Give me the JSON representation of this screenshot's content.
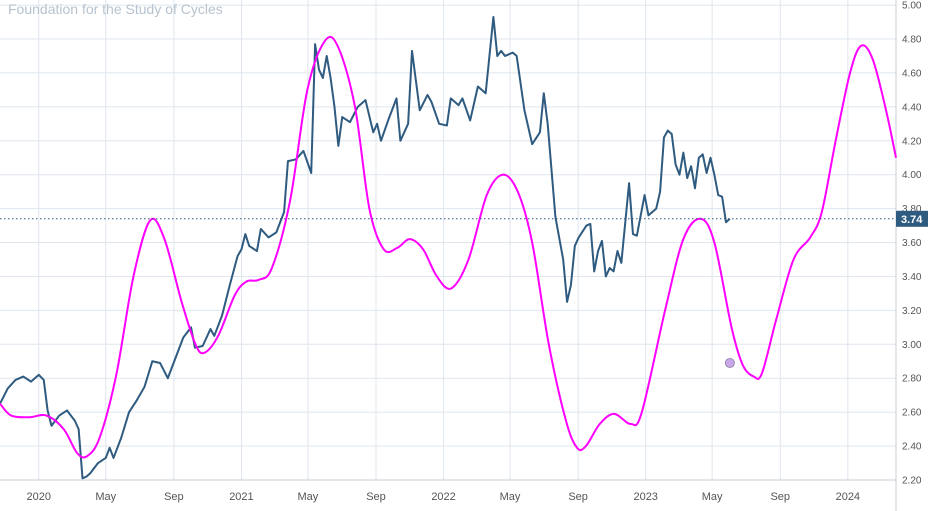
{
  "watermark": "Foundation for the Study of Cycles",
  "chart_data": {
    "type": "line",
    "title": "",
    "xlabel": "",
    "ylabel": "",
    "x_ticks": [
      {
        "label": "2020",
        "date": "2020-01-01"
      },
      {
        "label": "May",
        "date": "2020-05-01"
      },
      {
        "label": "Sep",
        "date": "2020-09-01"
      },
      {
        "label": "2021",
        "date": "2021-01-01"
      },
      {
        "label": "May",
        "date": "2021-05-01"
      },
      {
        "label": "Sep",
        "date": "2021-09-01"
      },
      {
        "label": "2022",
        "date": "2022-01-01"
      },
      {
        "label": "May",
        "date": "2022-05-01"
      },
      {
        "label": "Sep",
        "date": "2022-09-01"
      },
      {
        "label": "2023",
        "date": "2023-01-01"
      },
      {
        "label": "May",
        "date": "2023-05-01"
      },
      {
        "label": "Sep",
        "date": "2023-09-01"
      },
      {
        "label": "2024",
        "date": "2024-01-01"
      }
    ],
    "xlim": [
      "2019-10-23",
      "2024-03-28"
    ],
    "y_ticks": [
      "2.20",
      "2.40",
      "2.60",
      "2.80",
      "3.00",
      "3.20",
      "3.40",
      "3.60",
      "3.80",
      "4.00",
      "4.20",
      "4.40",
      "4.60",
      "4.80",
      "5.00"
    ],
    "ylim": [
      2.2,
      5.03
    ],
    "grid": true,
    "last_value": 3.74,
    "last_value_label": "3.74",
    "colors": {
      "price": "#2f5b80",
      "cycle": "#ff00ff",
      "marker_fill": "#c9a7e8",
      "grid": "#dfe6ee",
      "badge": "#2f5b80",
      "axis_text": "#555555"
    },
    "series": [
      {
        "style": "price",
        "points": [
          [
            "2019-10-23",
            2.65
          ],
          [
            "2019-11-06",
            2.74
          ],
          [
            "2019-11-20",
            2.79
          ],
          [
            "2019-12-04",
            2.81
          ],
          [
            "2019-12-18",
            2.78
          ],
          [
            "2020-01-01",
            2.82
          ],
          [
            "2020-01-10",
            2.79
          ],
          [
            "2020-01-17",
            2.61
          ],
          [
            "2020-01-24",
            2.52
          ],
          [
            "2020-02-07",
            2.58
          ],
          [
            "2020-02-21",
            2.61
          ],
          [
            "2020-03-06",
            2.55
          ],
          [
            "2020-03-13",
            2.5
          ],
          [
            "2020-03-20",
            2.21
          ],
          [
            "2020-03-27",
            2.22
          ],
          [
            "2020-04-03",
            2.24
          ],
          [
            "2020-04-17",
            2.3
          ],
          [
            "2020-05-01",
            2.33
          ],
          [
            "2020-05-08",
            2.39
          ],
          [
            "2020-05-15",
            2.33
          ],
          [
            "2020-05-29",
            2.45
          ],
          [
            "2020-06-12",
            2.6
          ],
          [
            "2020-06-26",
            2.67
          ],
          [
            "2020-07-10",
            2.75
          ],
          [
            "2020-07-24",
            2.9
          ],
          [
            "2020-08-07",
            2.89
          ],
          [
            "2020-08-21",
            2.8
          ],
          [
            "2020-09-04",
            2.92
          ],
          [
            "2020-09-18",
            3.04
          ],
          [
            "2020-10-02",
            3.1
          ],
          [
            "2020-10-09",
            2.98
          ],
          [
            "2020-10-23",
            2.99
          ],
          [
            "2020-11-06",
            3.09
          ],
          [
            "2020-11-13",
            3.05
          ],
          [
            "2020-11-27",
            3.17
          ],
          [
            "2020-12-11",
            3.35
          ],
          [
            "2020-12-25",
            3.52
          ],
          [
            "2021-01-01",
            3.56
          ],
          [
            "2021-01-08",
            3.65
          ],
          [
            "2021-01-15",
            3.58
          ],
          [
            "2021-01-29",
            3.55
          ],
          [
            "2021-02-05",
            3.68
          ],
          [
            "2021-02-19",
            3.63
          ],
          [
            "2021-03-05",
            3.66
          ],
          [
            "2021-03-19",
            3.78
          ],
          [
            "2021-03-26",
            4.08
          ],
          [
            "2021-04-09",
            4.09
          ],
          [
            "2021-04-23",
            4.14
          ],
          [
            "2021-05-07",
            4.01
          ],
          [
            "2021-05-14",
            4.77
          ],
          [
            "2021-05-21",
            4.62
          ],
          [
            "2021-05-28",
            4.57
          ],
          [
            "2021-06-04",
            4.7
          ],
          [
            "2021-06-11",
            4.57
          ],
          [
            "2021-06-18",
            4.4
          ],
          [
            "2021-06-25",
            4.17
          ],
          [
            "2021-07-02",
            4.34
          ],
          [
            "2021-07-16",
            4.31
          ],
          [
            "2021-07-30",
            4.4
          ],
          [
            "2021-08-13",
            4.44
          ],
          [
            "2021-08-27",
            4.25
          ],
          [
            "2021-09-03",
            4.3
          ],
          [
            "2021-09-10",
            4.2
          ],
          [
            "2021-09-24",
            4.33
          ],
          [
            "2021-10-08",
            4.45
          ],
          [
            "2021-10-15",
            4.2
          ],
          [
            "2021-10-29",
            4.3
          ],
          [
            "2021-11-05",
            4.73
          ],
          [
            "2021-11-19",
            4.38
          ],
          [
            "2021-12-03",
            4.47
          ],
          [
            "2021-12-10",
            4.43
          ],
          [
            "2021-12-24",
            4.3
          ],
          [
            "2022-01-07",
            4.29
          ],
          [
            "2022-01-14",
            4.45
          ],
          [
            "2022-01-28",
            4.41
          ],
          [
            "2022-02-04",
            4.45
          ],
          [
            "2022-02-18",
            4.32
          ],
          [
            "2022-03-04",
            4.52
          ],
          [
            "2022-03-18",
            4.48
          ],
          [
            "2022-04-01",
            4.93
          ],
          [
            "2022-04-08",
            4.7
          ],
          [
            "2022-04-15",
            4.73
          ],
          [
            "2022-04-22",
            4.7
          ],
          [
            "2022-05-06",
            4.72
          ],
          [
            "2022-05-13",
            4.7
          ],
          [
            "2022-05-27",
            4.38
          ],
          [
            "2022-06-10",
            4.18
          ],
          [
            "2022-06-24",
            4.25
          ],
          [
            "2022-07-01",
            4.48
          ],
          [
            "2022-07-08",
            4.3
          ],
          [
            "2022-07-22",
            3.75
          ],
          [
            "2022-08-05",
            3.5
          ],
          [
            "2022-08-12",
            3.25
          ],
          [
            "2022-08-19",
            3.35
          ],
          [
            "2022-08-26",
            3.58
          ],
          [
            "2022-09-02",
            3.63
          ],
          [
            "2022-09-16",
            3.7
          ],
          [
            "2022-09-23",
            3.71
          ],
          [
            "2022-09-30",
            3.43
          ],
          [
            "2022-10-07",
            3.55
          ],
          [
            "2022-10-14",
            3.61
          ],
          [
            "2022-10-21",
            3.4
          ],
          [
            "2022-10-28",
            3.45
          ],
          [
            "2022-11-04",
            3.43
          ],
          [
            "2022-11-11",
            3.55
          ],
          [
            "2022-11-18",
            3.48
          ],
          [
            "2022-12-02",
            3.95
          ],
          [
            "2022-12-09",
            3.65
          ],
          [
            "2022-12-16",
            3.64
          ],
          [
            "2022-12-30",
            3.88
          ],
          [
            "2023-01-06",
            3.76
          ],
          [
            "2023-01-20",
            3.8
          ],
          [
            "2023-01-27",
            3.9
          ],
          [
            "2023-02-03",
            4.22
          ],
          [
            "2023-02-10",
            4.26
          ],
          [
            "2023-02-17",
            4.24
          ],
          [
            "2023-02-24",
            4.06
          ],
          [
            "2023-03-03",
            4.0
          ],
          [
            "2023-03-10",
            4.13
          ],
          [
            "2023-03-17",
            3.98
          ],
          [
            "2023-03-24",
            4.05
          ],
          [
            "2023-03-31",
            3.92
          ],
          [
            "2023-04-07",
            4.1
          ],
          [
            "2023-04-14",
            4.12
          ],
          [
            "2023-04-21",
            4.01
          ],
          [
            "2023-04-28",
            4.1
          ],
          [
            "2023-05-05",
            4.0
          ],
          [
            "2023-05-12",
            3.88
          ],
          [
            "2023-05-19",
            3.87
          ],
          [
            "2023-05-26",
            3.72
          ],
          [
            "2023-06-02",
            3.74
          ]
        ]
      },
      {
        "style": "cycle",
        "points": [
          [
            "2019-10-23",
            2.65
          ],
          [
            "2019-11-12",
            2.58
          ],
          [
            "2019-12-15",
            2.57
          ],
          [
            "2020-01-15",
            2.58
          ],
          [
            "2020-02-15",
            2.5
          ],
          [
            "2020-03-10",
            2.36
          ],
          [
            "2020-03-28",
            2.34
          ],
          [
            "2020-04-20",
            2.45
          ],
          [
            "2020-05-20",
            2.82
          ],
          [
            "2020-06-20",
            3.4
          ],
          [
            "2020-07-20",
            3.73
          ],
          [
            "2020-08-15",
            3.62
          ],
          [
            "2020-09-15",
            3.25
          ],
          [
            "2020-10-10",
            3.0
          ],
          [
            "2020-10-26",
            2.95
          ],
          [
            "2020-11-20",
            3.05
          ],
          [
            "2020-12-20",
            3.29
          ],
          [
            "2021-01-10",
            3.37
          ],
          [
            "2021-02-01",
            3.38
          ],
          [
            "2021-02-25",
            3.45
          ],
          [
            "2021-03-30",
            3.85
          ],
          [
            "2021-04-30",
            4.5
          ],
          [
            "2021-06-01",
            4.79
          ],
          [
            "2021-06-25",
            4.75
          ],
          [
            "2021-07-25",
            4.4
          ],
          [
            "2021-08-20",
            3.8
          ],
          [
            "2021-09-15",
            3.56
          ],
          [
            "2021-10-10",
            3.57
          ],
          [
            "2021-11-01",
            3.62
          ],
          [
            "2021-11-25",
            3.56
          ],
          [
            "2021-12-20",
            3.4
          ],
          [
            "2022-01-15",
            3.33
          ],
          [
            "2022-02-15",
            3.5
          ],
          [
            "2022-03-20",
            3.88
          ],
          [
            "2022-04-18",
            4.0
          ],
          [
            "2022-05-15",
            3.9
          ],
          [
            "2022-06-10",
            3.6
          ],
          [
            "2022-07-10",
            3.0
          ],
          [
            "2022-08-10",
            2.55
          ],
          [
            "2022-08-30",
            2.39
          ],
          [
            "2022-09-15",
            2.4
          ],
          [
            "2022-10-10",
            2.53
          ],
          [
            "2022-11-05",
            2.59
          ],
          [
            "2022-12-05",
            2.53
          ],
          [
            "2022-12-25",
            2.6
          ],
          [
            "2023-02-05",
            3.2
          ],
          [
            "2023-03-10",
            3.62
          ],
          [
            "2023-04-10",
            3.74
          ],
          [
            "2023-05-05",
            3.6
          ],
          [
            "2023-06-05",
            3.1
          ],
          [
            "2023-06-25",
            2.88
          ],
          [
            "2023-07-15",
            2.81
          ],
          [
            "2023-07-30",
            2.83
          ],
          [
            "2023-08-25",
            3.15
          ],
          [
            "2023-09-25",
            3.5
          ],
          [
            "2023-10-25",
            3.63
          ],
          [
            "2023-11-15",
            3.78
          ],
          [
            "2023-12-10",
            4.2
          ],
          [
            "2024-01-05",
            4.6
          ],
          [
            "2024-01-25",
            4.76
          ],
          [
            "2024-02-15",
            4.68
          ],
          [
            "2024-03-10",
            4.38
          ],
          [
            "2024-03-28",
            4.1
          ]
        ]
      }
    ],
    "marker": {
      "date": "2023-06-02",
      "value": 2.89
    }
  }
}
